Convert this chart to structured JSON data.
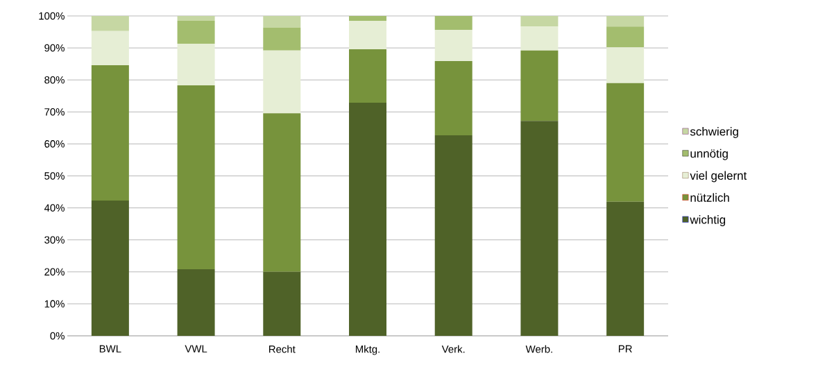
{
  "chart_data": {
    "type": "bar",
    "stacked": true,
    "categories": [
      "BWL",
      "VWL",
      "Recht",
      "Mktg.",
      "Verk.",
      "Werb.",
      "PR"
    ],
    "series": [
      {
        "name": "wichtig",
        "color": "#4f6228",
        "values": [
          42.3,
          20.8,
          20.0,
          72.9,
          62.7,
          67.2,
          41.9
        ]
      },
      {
        "name": "nützlich",
        "color": "#77933c",
        "values": [
          42.3,
          57.5,
          49.6,
          16.7,
          23.2,
          22.0,
          37.1
        ]
      },
      {
        "name": "viel gelernt",
        "color": "#e6eed5",
        "values": [
          10.7,
          13.0,
          19.6,
          8.9,
          9.7,
          7.5,
          11.2
        ]
      },
      {
        "name": "unnötig",
        "color": "#a3bd6e",
        "values": [
          0,
          7.2,
          7.1,
          1.5,
          4.4,
          0,
          6.5
        ]
      },
      {
        "name": "schwierig",
        "color": "#c6d7a3",
        "values": [
          4.7,
          1.5,
          3.7,
          0,
          0,
          3.3,
          3.3
        ]
      }
    ],
    "ylim": [
      0,
      100
    ],
    "yticks": [
      {
        "value": 0,
        "label": "0%"
      },
      {
        "value": 10,
        "label": "10%"
      },
      {
        "value": 20,
        "label": "20%"
      },
      {
        "value": 30,
        "label": "30%"
      },
      {
        "value": 40,
        "label": "40%"
      },
      {
        "value": 50,
        "label": "50%"
      },
      {
        "value": 60,
        "label": "60%"
      },
      {
        "value": 70,
        "label": "70%"
      },
      {
        "value": 80,
        "label": "80%"
      },
      {
        "value": 90,
        "label": "90%"
      },
      {
        "value": 100,
        "label": "100%"
      }
    ],
    "grid": "y",
    "legend": "right"
  }
}
